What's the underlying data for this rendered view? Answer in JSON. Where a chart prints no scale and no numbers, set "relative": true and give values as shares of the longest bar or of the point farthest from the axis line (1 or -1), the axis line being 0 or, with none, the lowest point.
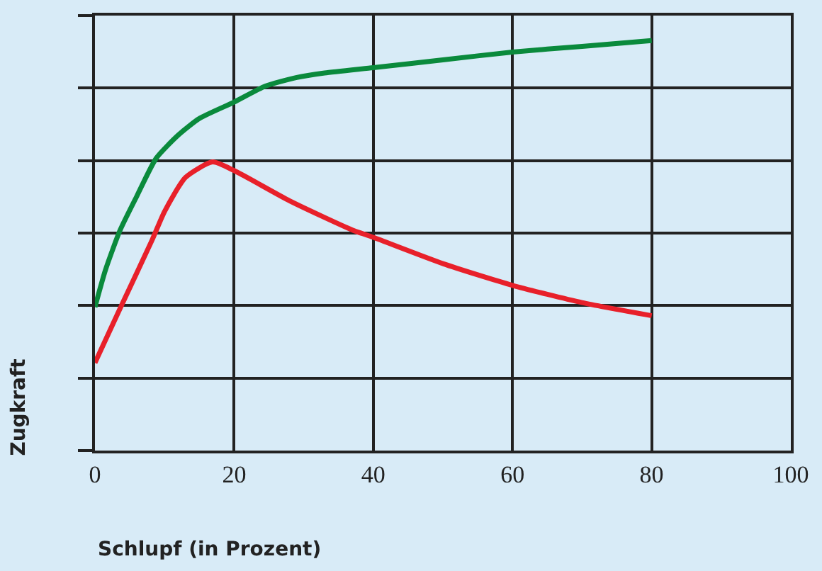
{
  "chart_data": {
    "type": "line",
    "relative": true,
    "xlabel": "Schlupf (in Prozent)",
    "ylabel": "Zugkraft",
    "xlim": [
      0,
      100
    ],
    "xticks": [
      0,
      20,
      40,
      60,
      80,
      100
    ],
    "grid": true,
    "marker": "none",
    "line_style": "solid",
    "series": [
      {
        "color": "#0a8a3c",
        "x": [
          0,
          1.5,
          3.6,
          6,
          8.8,
          12,
          15,
          20,
          24.5,
          29,
          33,
          40,
          50,
          60,
          70,
          80
        ],
        "values": [
          0.35,
          0.44,
          0.537,
          0.62,
          0.713,
          0.77,
          0.81,
          0.85,
          0.889,
          0.91,
          0.921,
          0.934,
          0.953,
          0.972,
          0.986,
          1
        ]
      },
      {
        "color": "#e8202a",
        "x": [
          0,
          3.7,
          8.2,
          10,
          13,
          16.9,
          20,
          28,
          37,
          40,
          50,
          60,
          70,
          80
        ],
        "values": [
          0.214,
          0.35,
          0.513,
          0.583,
          0.666,
          0.704,
          0.683,
          0.609,
          0.538,
          0.52,
          0.456,
          0.403,
          0.361,
          0.329
        ]
      }
    ]
  }
}
